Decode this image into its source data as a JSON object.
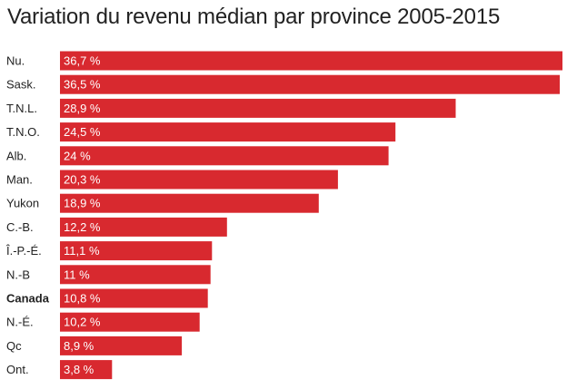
{
  "chart_data": {
    "type": "bar",
    "orientation": "horizontal",
    "title": "Variation du revenu médian par province 2005-2015",
    "categories": [
      "Nu.",
      "Sask.",
      "T.N.L.",
      "T.N.O.",
      "Alb.",
      "Man.",
      "Yukon",
      "C.-B.",
      "Î.-P.-É.",
      "N.-B",
      "Canada",
      "N.-É.",
      "Qc",
      "Ont."
    ],
    "values": [
      36.7,
      36.5,
      28.9,
      24.5,
      24,
      20.3,
      18.9,
      12.2,
      11.1,
      11,
      10.8,
      10.2,
      8.9,
      3.8
    ],
    "value_labels": [
      "36,7 %",
      "36,5 %",
      "28,9 %",
      "24,5 %",
      "24 %",
      "20,3 %",
      "18,9 %",
      "12,2 %",
      "11,1 %",
      "11 %",
      "10,8 %",
      "10,2 %",
      "8,9 %",
      "3,8 %"
    ],
    "highlight_categories": [
      "Canada"
    ],
    "bar_color": "#d8292f",
    "label_color": "#ffffff",
    "text_color": "#222222",
    "xlim": [
      0,
      36.7
    ],
    "grid": false,
    "legend": "none"
  }
}
